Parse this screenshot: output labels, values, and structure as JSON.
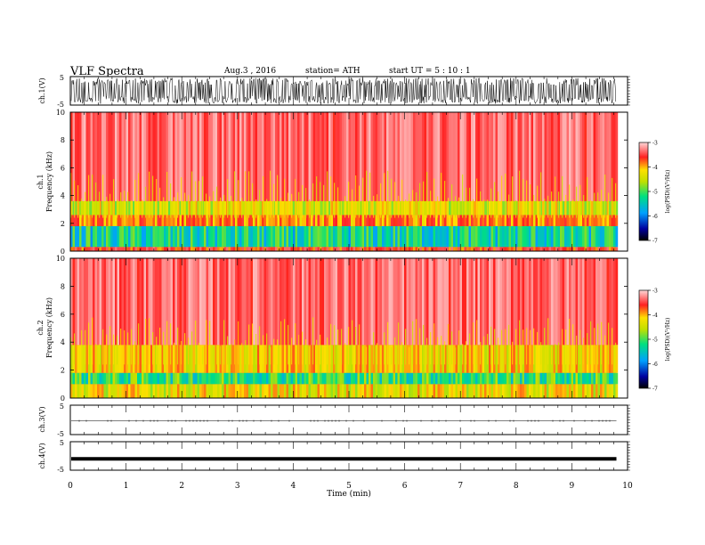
{
  "header": {
    "title": "VLF  Spectra",
    "date": "Aug.3  , 2016",
    "station": "station= ATH",
    "start": "start  UT  =   5  : 10 : 1"
  },
  "colors": {
    "axis": "#000000",
    "background": "#ffffff",
    "spectrogram_high": "#ff2020",
    "spectrogram_mid": "#ffd000",
    "spectrogram_low": "#20c060"
  },
  "chart_data": [
    {
      "type": "line",
      "name": "ch1-waveform",
      "ylabel": "ch.1(V)",
      "ylim": [
        -5,
        5
      ],
      "yticks": [
        "5",
        "-5"
      ],
      "x_range_min": [
        0,
        9.8
      ],
      "amplitude_approx_V": 4.5,
      "note_values": "dense noise signal filling most of the ±5 V range"
    },
    {
      "type": "heatmap",
      "name": "ch1-spectrogram",
      "ylabel_line1": "ch.1",
      "ylabel_line2": "Frequency  (kHz)",
      "ylim": [
        0,
        10
      ],
      "yticks": [
        "0",
        "2",
        "4",
        "6",
        "8",
        "10"
      ],
      "xlim": [
        0,
        10
      ],
      "colorbar": {
        "label": "log(PSD)(V²/Hz)",
        "range": [
          -7,
          -3
        ],
        "ticks": [
          "-3",
          "-4",
          "-5",
          "-6",
          "-7"
        ]
      },
      "bands_logpsd": [
        {
          "freq_kHz": [
            0,
            0.3
          ],
          "logPSD": -4.0
        },
        {
          "freq_kHz": [
            0.3,
            1.8
          ],
          "logPSD": -5.6
        },
        {
          "freq_kHz": [
            1.8,
            2.6
          ],
          "logPSD": -4.3
        },
        {
          "freq_kHz": [
            2.6,
            3.6
          ],
          "logPSD": -4.8
        },
        {
          "freq_kHz": [
            3.6,
            10
          ],
          "logPSD": -3.6
        }
      ]
    },
    {
      "type": "heatmap",
      "name": "ch2-spectrogram",
      "ylabel_line1": "ch.2",
      "ylabel_line2": "Frequency  (kHz)",
      "ylim": [
        0,
        10
      ],
      "yticks": [
        "0",
        "2",
        "4",
        "6",
        "8",
        "10"
      ],
      "xlim": [
        0,
        10
      ],
      "colorbar": {
        "label": "log(PSD)(V²/Hz)",
        "range": [
          -7,
          -3
        ],
        "ticks": [
          "-3",
          "-4",
          "-5",
          "-6",
          "-7"
        ]
      },
      "bands_logpsd": [
        {
          "freq_kHz": [
            0,
            1.0
          ],
          "logPSD": -4.7
        },
        {
          "freq_kHz": [
            1.0,
            1.8
          ],
          "logPSD": -5.4
        },
        {
          "freq_kHz": [
            1.8,
            3.8
          ],
          "logPSD": -4.6
        },
        {
          "freq_kHz": [
            3.8,
            10
          ],
          "logPSD": -3.6
        }
      ]
    },
    {
      "type": "line",
      "name": "ch3-waveform",
      "ylabel": "ch.3(V)",
      "ylim": [
        -5,
        5
      ],
      "yticks": [
        "5",
        "-5"
      ],
      "level_V": -0.3,
      "x_range_min": [
        0,
        9.8
      ]
    },
    {
      "type": "line",
      "name": "ch4-waveform",
      "ylabel": "ch.4(V)",
      "ylim": [
        -5,
        5
      ],
      "yticks": [
        "5",
        "-5"
      ],
      "level_V": -1.0,
      "x_range_min": [
        0,
        9.8
      ]
    }
  ],
  "xaxis": {
    "label": "Time  (min)",
    "xlim": [
      0,
      10
    ],
    "ticks": [
      "0",
      "1",
      "2",
      "3",
      "4",
      "5",
      "6",
      "7",
      "8",
      "9",
      "10"
    ]
  }
}
